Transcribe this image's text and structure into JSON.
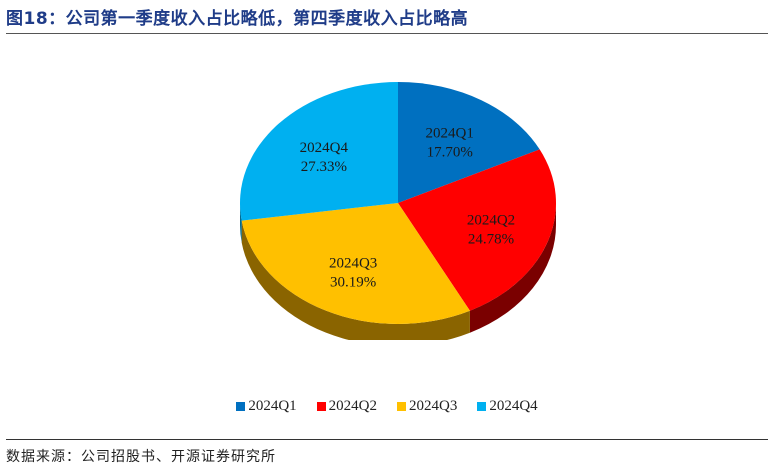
{
  "title": "图18：公司第一季度收入占比略低，第四季度收入占比略高",
  "source": "数据来源：公司招股书、开源证券研究所",
  "chart_data": {
    "type": "pie",
    "style": "3d",
    "title": "公司第一季度收入占比略低，第四季度收入占比略高",
    "categories": [
      "2024Q1",
      "2024Q2",
      "2024Q3",
      "2024Q4"
    ],
    "values": [
      17.7,
      24.78,
      30.19,
      27.33
    ],
    "labels": [
      "17.70%",
      "24.78%",
      "30.19%",
      "27.33%"
    ],
    "colors": [
      "#0070c0",
      "#ff0000",
      "#ffc000",
      "#00b0f0"
    ],
    "side_colors": [
      "#003c68",
      "#7a0000",
      "#8a6400",
      "#006a90"
    ],
    "legend_position": "bottom",
    "start_angle_deg": 0,
    "direction": "clockwise"
  },
  "legend": [
    {
      "label": "2024Q1",
      "color": "#0070c0"
    },
    {
      "label": "2024Q2",
      "color": "#ff0000"
    },
    {
      "label": "2024Q3",
      "color": "#ffc000"
    },
    {
      "label": "2024Q4",
      "color": "#00b0f0"
    }
  ]
}
